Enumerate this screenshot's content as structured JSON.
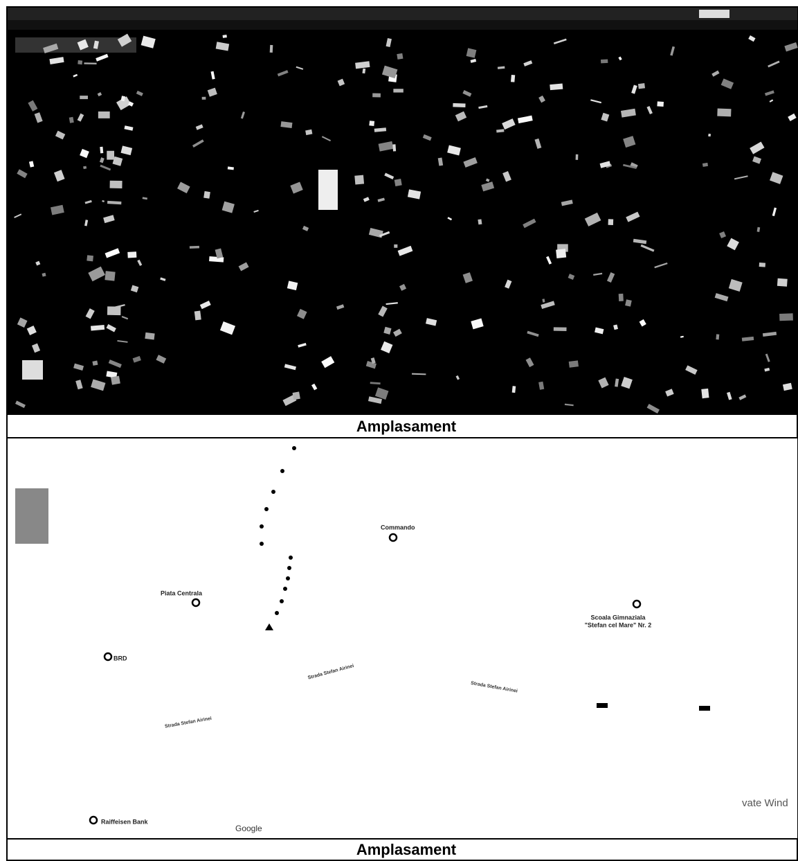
{
  "panels": [
    {
      "caption": "Amplasament"
    },
    {
      "caption": "Amplasament",
      "places": [
        "Commando",
        "Piata Centrala",
        "BRD",
        "Raiffeisen Bank",
        "Scoala Gimnaziala",
        "\"Stefan cel Mare\" Nr. 2"
      ],
      "streets": [
        "Strada Stefan Airinei",
        "Strada Stefan Airinei",
        "Strada Stefan Airinei"
      ],
      "brand": "Google",
      "watermark": "vate Wind"
    }
  ]
}
